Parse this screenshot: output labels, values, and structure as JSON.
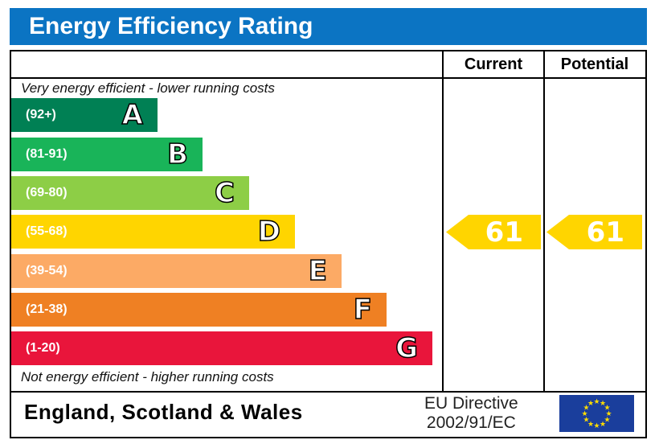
{
  "title": "Energy Efficiency Rating",
  "columns": {
    "current": "Current",
    "potential": "Potential"
  },
  "top_note": "Very energy efficient - lower running costs",
  "bottom_note": "Not energy efficient - higher running costs",
  "footer": {
    "region": "England, Scotland & Wales",
    "directive_line1": "EU Directive",
    "directive_line2": "2002/91/EC",
    "flag_icon": "eu-flag-icon"
  },
  "chart_data": {
    "type": "bar",
    "title": "Energy Efficiency Rating",
    "bands": [
      {
        "letter": "A",
        "range": "(92+)",
        "color": "#008054"
      },
      {
        "letter": "B",
        "range": "(81-91)",
        "color": "#19b459"
      },
      {
        "letter": "C",
        "range": "(69-80)",
        "color": "#8dce46"
      },
      {
        "letter": "D",
        "range": "(55-68)",
        "color": "#ffd500"
      },
      {
        "letter": "E",
        "range": "(39-54)",
        "color": "#fcaa65"
      },
      {
        "letter": "F",
        "range": "(21-38)",
        "color": "#ef8023"
      },
      {
        "letter": "G",
        "range": "(1-20)",
        "color": "#e9153b"
      }
    ],
    "current": {
      "value": "61",
      "band": "D",
      "color": "#ffd500"
    },
    "potential": {
      "value": "61",
      "band": "D",
      "color": "#ffd500"
    }
  }
}
